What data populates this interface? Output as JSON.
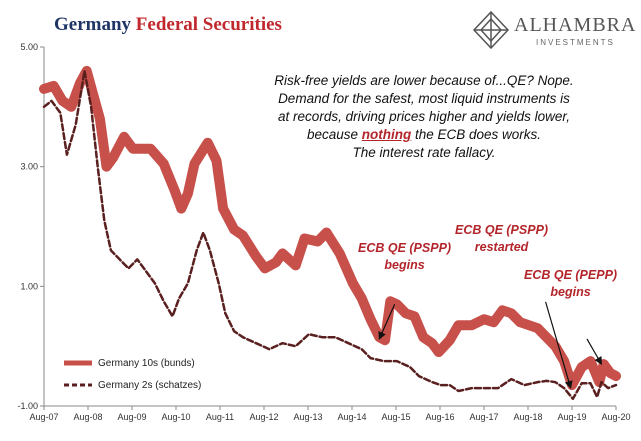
{
  "title": {
    "part1": "Germany ",
    "part2": "Federal Securities"
  },
  "logo": {
    "name": "ALHAMBRA",
    "sub": "INVESTMENTS"
  },
  "colors": {
    "bund": "#c8504b",
    "schatz": "#5a2020",
    "title_blue": "#1f3566",
    "title_red": "#c0282d",
    "callout": "#b3252b"
  },
  "annotation": {
    "line1": "Risk-free yields are lower because of...QE? Nope.",
    "line2": "Demand for the safest, most liquid instruments is",
    "line3": "at records, driving prices higher and yields lower,",
    "line4_pre": "because ",
    "line4_hl": "nothing",
    "line4_post": " the ECB does works.",
    "line5": "The interest rate fallacy."
  },
  "callouts": [
    {
      "line1": "ECB QE (PSPP)",
      "line2": "begins"
    },
    {
      "line1": "ECB QE (PSPP)",
      "line2": "restarted"
    },
    {
      "line1": "ECB QE (PEPP)",
      "line2": "begins"
    }
  ],
  "legend": {
    "bund": "Germany 10s (bunds)",
    "schatz": "Germany 2s (schatzes)"
  },
  "chart_data": {
    "type": "line",
    "x_ticks": [
      "Aug-07",
      "Aug-08",
      "Aug-09",
      "Aug-10",
      "Aug-11",
      "Aug-12",
      "Aug-13",
      "Aug-14",
      "Aug-15",
      "Aug-16",
      "Aug-17",
      "Aug-18",
      "Aug-19",
      "Aug-20"
    ],
    "y_ticks": [
      "5.00",
      "3.00",
      "1.00",
      "-1.00"
    ],
    "ylim": [
      -1.0,
      5.0
    ],
    "xlim": [
      2007.58,
      2020.58
    ],
    "legend_position": "bottom-left",
    "grid": false,
    "series": [
      {
        "name": "Germany 10s (bunds)",
        "points": [
          [
            2007.58,
            4.3
          ],
          [
            2007.8,
            4.35
          ],
          [
            2008.0,
            4.1
          ],
          [
            2008.2,
            4.0
          ],
          [
            2008.4,
            4.4
          ],
          [
            2008.55,
            4.6
          ],
          [
            2008.7,
            4.2
          ],
          [
            2008.85,
            3.8
          ],
          [
            2009.0,
            3.0
          ],
          [
            2009.15,
            3.15
          ],
          [
            2009.4,
            3.5
          ],
          [
            2009.6,
            3.3
          ],
          [
            2009.8,
            3.3
          ],
          [
            2010.0,
            3.3
          ],
          [
            2010.3,
            3.05
          ],
          [
            2010.55,
            2.6
          ],
          [
            2010.7,
            2.3
          ],
          [
            2010.85,
            2.55
          ],
          [
            2011.0,
            3.05
          ],
          [
            2011.3,
            3.4
          ],
          [
            2011.5,
            3.1
          ],
          [
            2011.65,
            2.3
          ],
          [
            2011.9,
            1.95
          ],
          [
            2012.1,
            1.85
          ],
          [
            2012.4,
            1.5
          ],
          [
            2012.6,
            1.3
          ],
          [
            2012.85,
            1.4
          ],
          [
            2013.0,
            1.55
          ],
          [
            2013.3,
            1.35
          ],
          [
            2013.5,
            1.8
          ],
          [
            2013.8,
            1.75
          ],
          [
            2014.0,
            1.9
          ],
          [
            2014.3,
            1.55
          ],
          [
            2014.6,
            1.05
          ],
          [
            2014.8,
            0.8
          ],
          [
            2015.0,
            0.45
          ],
          [
            2015.2,
            0.15
          ],
          [
            2015.33,
            0.1
          ],
          [
            2015.45,
            0.75
          ],
          [
            2015.6,
            0.7
          ],
          [
            2015.8,
            0.55
          ],
          [
            2016.0,
            0.5
          ],
          [
            2016.2,
            0.15
          ],
          [
            2016.4,
            0.05
          ],
          [
            2016.55,
            -0.1
          ],
          [
            2016.8,
            0.1
          ],
          [
            2017.0,
            0.35
          ],
          [
            2017.3,
            0.35
          ],
          [
            2017.58,
            0.45
          ],
          [
            2017.8,
            0.4
          ],
          [
            2018.0,
            0.6
          ],
          [
            2018.2,
            0.55
          ],
          [
            2018.4,
            0.4
          ],
          [
            2018.6,
            0.35
          ],
          [
            2018.8,
            0.3
          ],
          [
            2019.0,
            0.15
          ],
          [
            2019.2,
            0.0
          ],
          [
            2019.4,
            -0.25
          ],
          [
            2019.58,
            -0.65
          ],
          [
            2019.8,
            -0.35
          ],
          [
            2020.0,
            -0.25
          ],
          [
            2020.2,
            -0.6
          ],
          [
            2020.3,
            -0.3
          ],
          [
            2020.45,
            -0.45
          ],
          [
            2020.58,
            -0.5
          ]
        ]
      },
      {
        "name": "Germany 2s (schatzes)",
        "points": [
          [
            2007.58,
            4.0
          ],
          [
            2007.75,
            4.1
          ],
          [
            2007.95,
            3.9
          ],
          [
            2008.1,
            3.2
          ],
          [
            2008.3,
            3.7
          ],
          [
            2008.5,
            4.6
          ],
          [
            2008.65,
            4.0
          ],
          [
            2008.8,
            3.0
          ],
          [
            2008.95,
            2.1
          ],
          [
            2009.1,
            1.6
          ],
          [
            2009.3,
            1.45
          ],
          [
            2009.5,
            1.3
          ],
          [
            2009.7,
            1.45
          ],
          [
            2009.9,
            1.25
          ],
          [
            2010.1,
            1.05
          ],
          [
            2010.3,
            0.75
          ],
          [
            2010.5,
            0.5
          ],
          [
            2010.65,
            0.8
          ],
          [
            2010.85,
            1.05
          ],
          [
            2011.05,
            1.6
          ],
          [
            2011.2,
            1.9
          ],
          [
            2011.35,
            1.6
          ],
          [
            2011.55,
            1.05
          ],
          [
            2011.7,
            0.55
          ],
          [
            2011.9,
            0.25
          ],
          [
            2012.1,
            0.15
          ],
          [
            2012.4,
            0.05
          ],
          [
            2012.7,
            -0.05
          ],
          [
            2013.0,
            0.05
          ],
          [
            2013.3,
            0.0
          ],
          [
            2013.6,
            0.2
          ],
          [
            2013.9,
            0.15
          ],
          [
            2014.2,
            0.15
          ],
          [
            2014.5,
            0.05
          ],
          [
            2014.8,
            -0.05
          ],
          [
            2015.0,
            -0.2
          ],
          [
            2015.3,
            -0.25
          ],
          [
            2015.6,
            -0.25
          ],
          [
            2015.9,
            -0.35
          ],
          [
            2016.1,
            -0.5
          ],
          [
            2016.4,
            -0.6
          ],
          [
            2016.6,
            -0.65
          ],
          [
            2016.8,
            -0.65
          ],
          [
            2017.0,
            -0.75
          ],
          [
            2017.3,
            -0.7
          ],
          [
            2017.58,
            -0.7
          ],
          [
            2017.9,
            -0.7
          ],
          [
            2018.2,
            -0.55
          ],
          [
            2018.5,
            -0.65
          ],
          [
            2018.8,
            -0.6
          ],
          [
            2019.0,
            -0.58
          ],
          [
            2019.2,
            -0.6
          ],
          [
            2019.4,
            -0.7
          ],
          [
            2019.6,
            -0.88
          ],
          [
            2019.8,
            -0.62
          ],
          [
            2020.0,
            -0.62
          ],
          [
            2020.15,
            -0.85
          ],
          [
            2020.25,
            -0.6
          ],
          [
            2020.4,
            -0.7
          ],
          [
            2020.58,
            -0.65
          ]
        ]
      }
    ]
  }
}
